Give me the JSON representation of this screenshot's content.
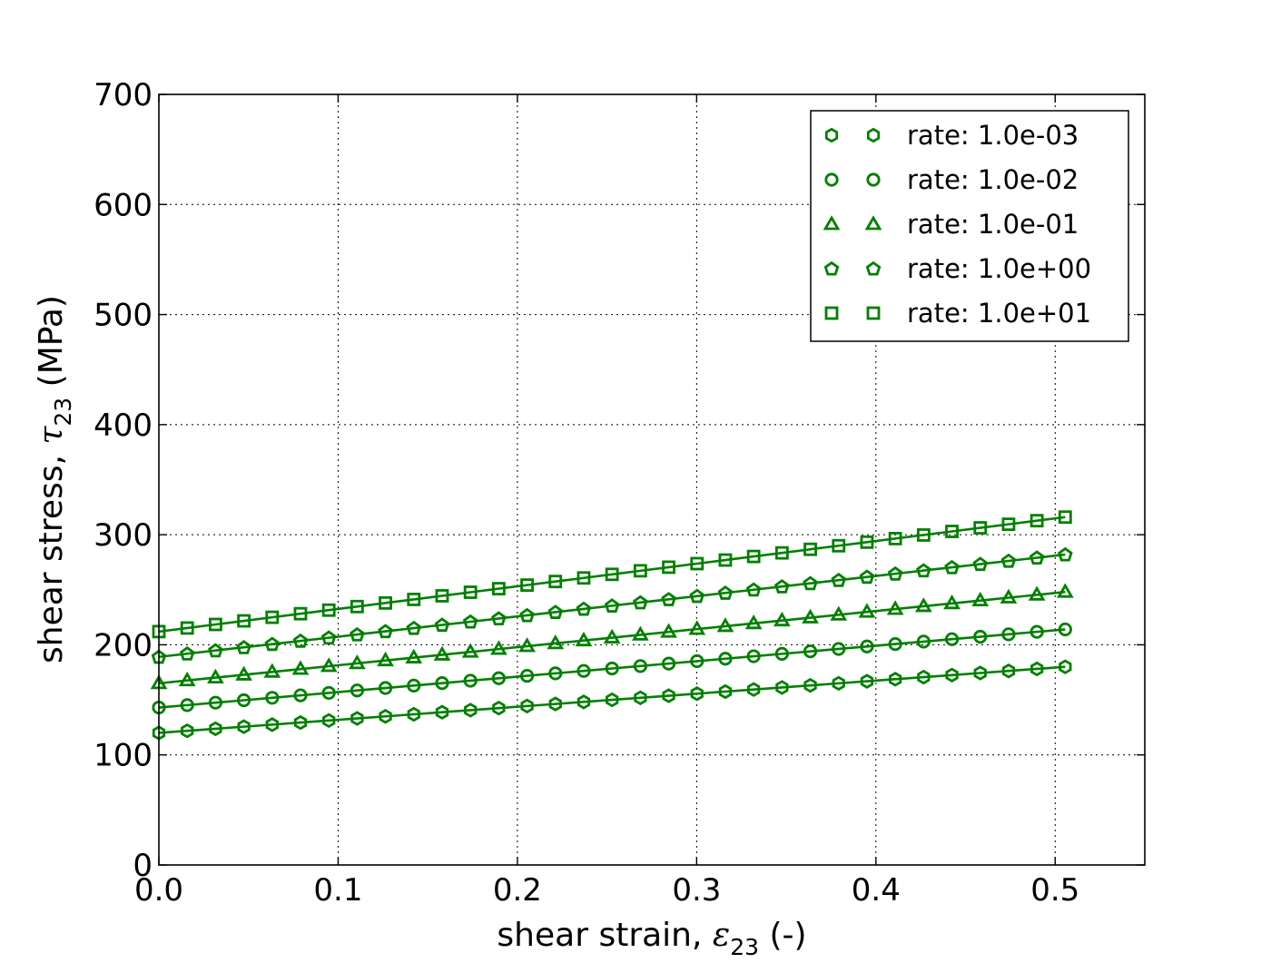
{
  "chart_data": {
    "type": "line",
    "title": "",
    "xlabel": {
      "prefix": "shear strain, ",
      "symbol": "ε",
      "subscript": "23",
      "suffix": " (-)"
    },
    "ylabel": {
      "prefix": "shear stress, ",
      "symbol": "τ",
      "subscript": "23",
      "suffix": " (MPa)"
    },
    "xlim": [
      0.0,
      0.55
    ],
    "ylim": [
      0,
      700
    ],
    "xticks": [
      0.0,
      0.1,
      0.2,
      0.3,
      0.4,
      0.5
    ],
    "xtick_labels": [
      "0.0",
      "0.1",
      "0.2",
      "0.3",
      "0.4",
      "0.5"
    ],
    "yticks": [
      0,
      100,
      200,
      300,
      400,
      500,
      600,
      700
    ],
    "ytick_labels": [
      "0",
      "100",
      "200",
      "300",
      "400",
      "500",
      "600",
      "700"
    ],
    "grid": true,
    "legend_position": "top-right",
    "color": "#008000",
    "x": [
      0.0,
      0.0158,
      0.0316,
      0.0474,
      0.0632,
      0.079,
      0.0948,
      0.1106,
      0.1264,
      0.1422,
      0.158,
      0.1738,
      0.1896,
      0.2054,
      0.2212,
      0.237,
      0.2528,
      0.2686,
      0.2844,
      0.3002,
      0.316,
      0.3318,
      0.3476,
      0.3634,
      0.3792,
      0.395,
      0.4108,
      0.4266,
      0.4424,
      0.4582,
      0.474,
      0.4898,
      0.5056
    ],
    "series": [
      {
        "name": "rate: 1.0e-03",
        "marker": "hexagon",
        "start": 120,
        "end": 180
      },
      {
        "name": "rate: 1.0e-02",
        "marker": "circle",
        "start": 143,
        "end": 214
      },
      {
        "name": "rate: 1.0e-01",
        "marker": "triangle",
        "start": 165,
        "end": 248
      },
      {
        "name": "rate: 1.0e+00",
        "marker": "pentagon",
        "start": 189,
        "end": 282
      },
      {
        "name": "rate: 1.0e+01",
        "marker": "square",
        "start": 212,
        "end": 316
      }
    ]
  }
}
